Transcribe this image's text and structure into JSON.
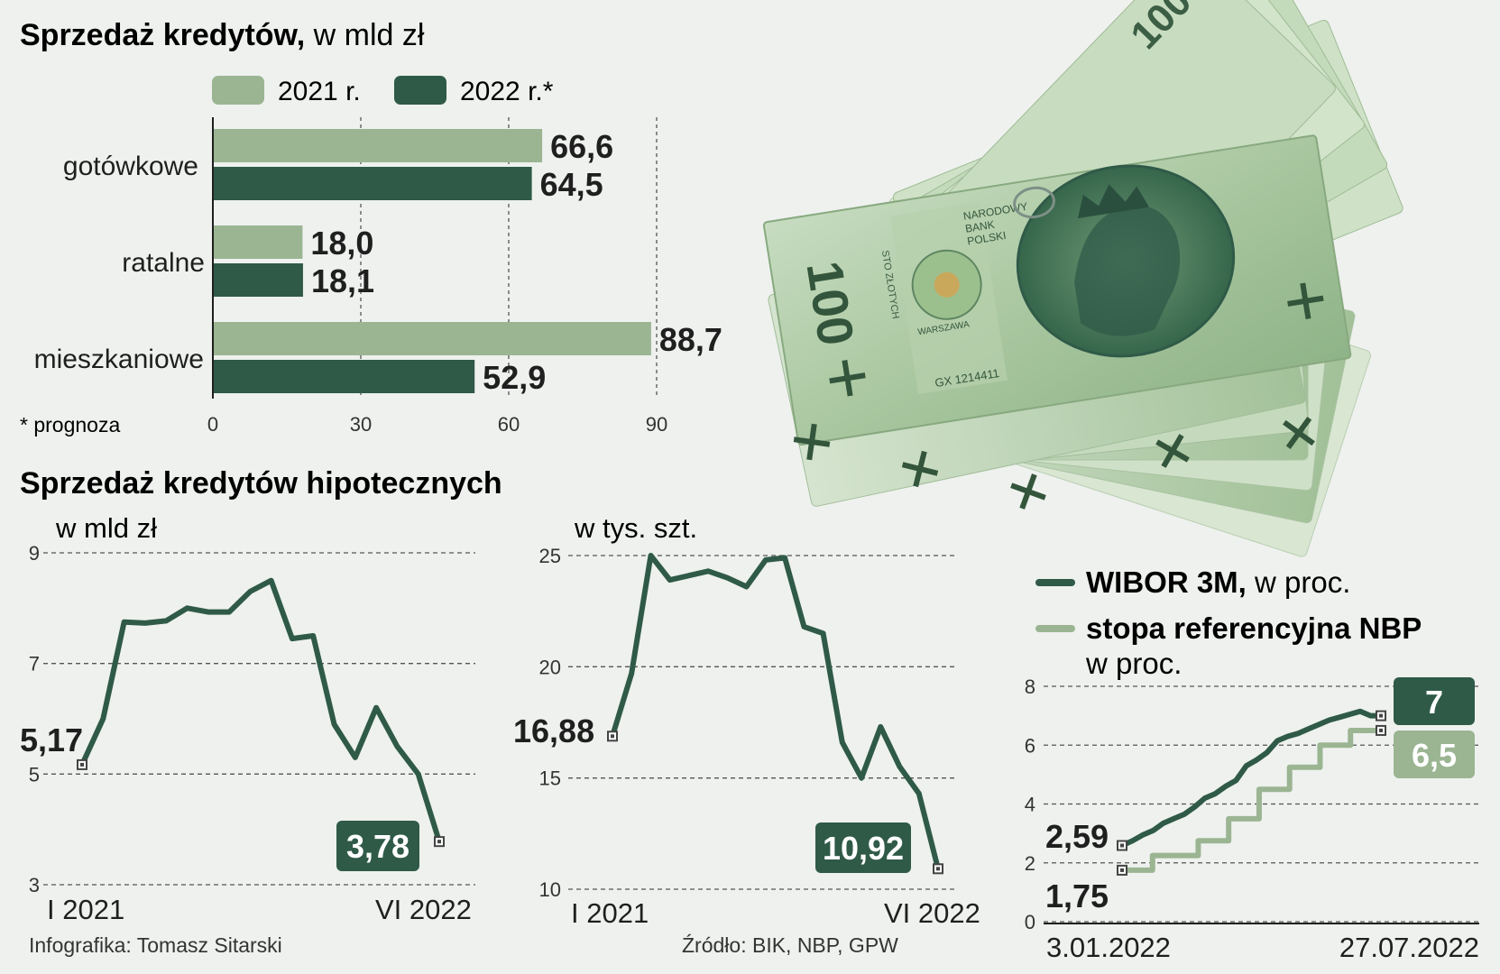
{
  "colors": {
    "background": "#eef1ee",
    "dark_green": "#2f5a48",
    "light_green": "#9bb593",
    "text": "#1f1f1f",
    "grid": "#555555"
  },
  "bar_chart": {
    "title_bold": "Sprzedaż kredytów,",
    "title_rest": " w mld zł",
    "legend": [
      "2021 r.",
      "2022 r.*"
    ],
    "footnote": "* prognoza"
  },
  "mortgage_section": {
    "title": "Sprzedaż kredytów hipotecznych",
    "left_unit": "w mld zł",
    "right_unit": "w tys. szt.",
    "left_start_label": "5,17",
    "left_end_label": "3,78",
    "right_start_label": "16,88",
    "right_end_label": "10,92"
  },
  "wibor_section": {
    "legend": [
      {
        "bold": "WIBOR 3M,",
        "rest": " w proc."
      },
      {
        "bold": "stopa referencyjna NBP",
        "rest": ""
      }
    ],
    "legend_unit": "w proc.",
    "wibor_start_label": "2,59",
    "nbp_start_label": "1,75",
    "wibor_end_label": "7",
    "nbp_end_label": "6,5"
  },
  "credits": {
    "author": "Infografika: Tomasz Sitarski",
    "source": "Źródło: BIK, NBP, GPW"
  },
  "image": {
    "description_icon": "banknotes-100-pln-image",
    "banknote_text": [
      "100",
      "NARODOWY BANK POLSKI",
      "STO ZŁOTYCH",
      "GX 1214411",
      "WARSZAWA"
    ]
  },
  "chart_data": [
    {
      "type": "bar",
      "orientation": "horizontal",
      "title": "Sprzedaż kredytów, w mld zł",
      "categories": [
        "gotówkowe",
        "ratalne",
        "mieszkaniowe"
      ],
      "series": [
        {
          "name": "2021 r.",
          "values": [
            66.6,
            18.0,
            88.7
          ],
          "labels": [
            "66,6",
            "18,0",
            "88,7"
          ]
        },
        {
          "name": "2022 r.*",
          "values": [
            64.5,
            18.1,
            52.9
          ],
          "labels": [
            "64,5",
            "18,1",
            "52,9"
          ]
        }
      ],
      "xlim": [
        0,
        90
      ],
      "xticks": [
        0,
        30,
        60,
        90
      ],
      "xtick_labels": [
        "0",
        "30",
        "60",
        "90"
      ],
      "grid": "dashed vertical"
    },
    {
      "type": "line",
      "title": "Sprzedaż kredytów hipotecznych",
      "ylabel": "w mld zł",
      "x_labels": [
        "I 2021",
        "VI 2022"
      ],
      "y": [
        5.17,
        6.0,
        7.75,
        7.73,
        7.77,
        8.0,
        7.93,
        7.93,
        8.3,
        8.5,
        7.45,
        7.5,
        5.9,
        5.3,
        6.2,
        5.5,
        5.0,
        3.78
      ],
      "ylim": [
        3,
        9
      ],
      "yticks": [
        3,
        5,
        7,
        9
      ],
      "ytick_labels": [
        "3",
        "5",
        "7",
        "9"
      ],
      "grid": "dashed horizontal"
    },
    {
      "type": "line",
      "title": "Sprzedaż kredytów hipotecznych",
      "ylabel": "w tys. szt.",
      "x_labels": [
        "I 2021",
        "VI 2022"
      ],
      "y": [
        16.88,
        19.7,
        25.0,
        23.9,
        24.1,
        24.3,
        24.0,
        23.6,
        24.8,
        24.9,
        21.8,
        21.5,
        16.6,
        15.0,
        17.3,
        15.5,
        14.3,
        10.92
      ],
      "ylim": [
        10,
        25
      ],
      "yticks": [
        10,
        15,
        20,
        25
      ],
      "ytick_labels": [
        "10",
        "15",
        "20",
        "25"
      ],
      "grid": "dashed horizontal"
    },
    {
      "type": "line",
      "x_labels": [
        "3.01.2022",
        "27.07.2022"
      ],
      "series": [
        {
          "name": "WIBOR 3M",
          "y": [
            2.59,
            2.75,
            2.95,
            3.1,
            3.35,
            3.5,
            3.65,
            3.9,
            4.2,
            4.35,
            4.6,
            4.8,
            5.3,
            5.5,
            5.75,
            6.15,
            6.3,
            6.4,
            6.55,
            6.7,
            6.85,
            6.95,
            7.05,
            7.15,
            7.0,
            7.0
          ]
        },
        {
          "name": "stopa referencyjna NBP",
          "y": [
            1.75,
            1.75,
            2.25,
            2.25,
            2.25,
            2.75,
            2.75,
            3.5,
            3.5,
            4.5,
            4.5,
            5.25,
            5.25,
            6.0,
            6.0,
            6.5,
            6.5,
            6.5
          ]
        }
      ],
      "ylim": [
        0,
        8
      ],
      "yticks": [
        0,
        2,
        4,
        6,
        8
      ],
      "ytick_labels": [
        "0",
        "2",
        "4",
        "6",
        "8"
      ],
      "grid": "dashed horizontal"
    }
  ]
}
